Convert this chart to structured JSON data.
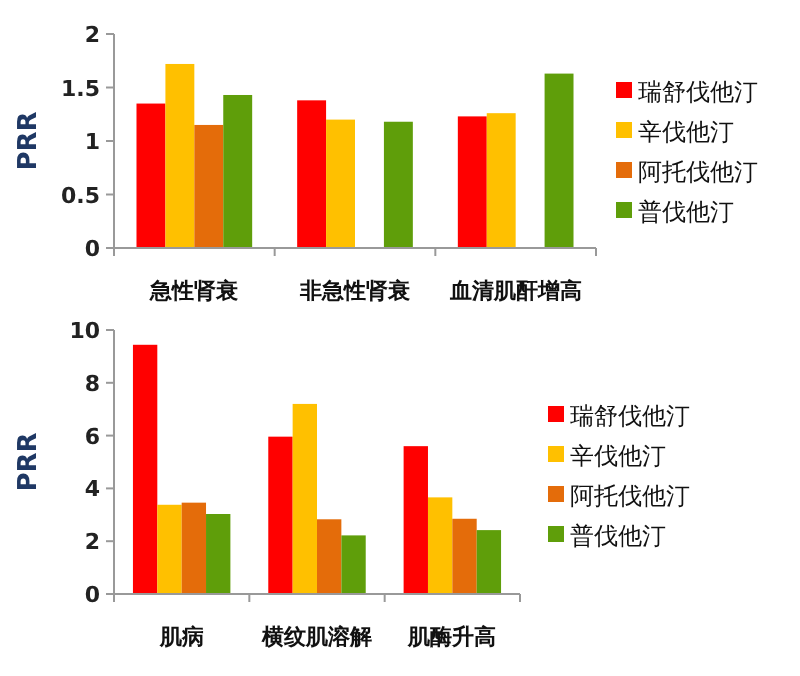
{
  "chart_data": [
    {
      "type": "bar",
      "ylabel": "PRR",
      "categories": [
        "急性肾衰",
        "非急性肾衰",
        "血清肌酐增高"
      ],
      "series": [
        {
          "name": "瑞舒伐他汀",
          "color": "#ff0000",
          "values": [
            1.35,
            1.38,
            1.23
          ]
        },
        {
          "name": "辛伐他汀",
          "color": "#ffc000",
          "values": [
            1.72,
            1.2,
            1.26
          ]
        },
        {
          "name": "阿托伐他汀",
          "color": "#e46c0a",
          "values": [
            1.15,
            null,
            null
          ]
        },
        {
          "name": "普伐他汀",
          "color": "#5f9e0a",
          "values": [
            1.43,
            1.18,
            1.63
          ]
        }
      ],
      "ylim": [
        0,
        2
      ],
      "yticks": [
        0,
        0.5,
        1,
        1.5,
        2
      ],
      "legend": "right",
      "grid": false
    },
    {
      "type": "bar",
      "ylabel": "PRR",
      "categories": [
        "肌病",
        "横纹肌溶解",
        "肌酶升高"
      ],
      "series": [
        {
          "name": "瑞舒伐他汀",
          "color": "#ff0000",
          "values": [
            9.44,
            5.96,
            5.6
          ]
        },
        {
          "name": "辛伐他汀",
          "color": "#ffc000",
          "values": [
            3.38,
            7.2,
            3.66
          ]
        },
        {
          "name": "阿托伐他汀",
          "color": "#e46c0a",
          "values": [
            3.46,
            2.83,
            2.85
          ]
        },
        {
          "name": "普伐他汀",
          "color": "#5f9e0a",
          "values": [
            3.03,
            2.22,
            2.42
          ]
        }
      ],
      "ylim": [
        0,
        10
      ],
      "yticks": [
        0,
        2,
        4,
        6,
        8,
        10
      ],
      "legend": "right",
      "grid": false
    }
  ]
}
